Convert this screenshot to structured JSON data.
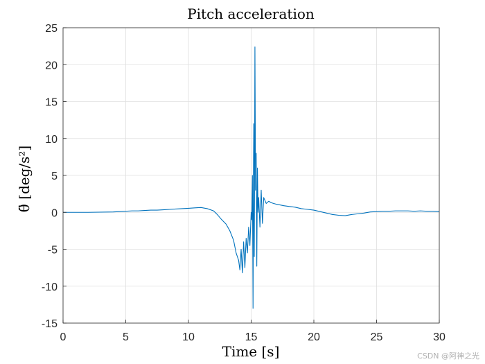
{
  "chart_data": {
    "type": "line",
    "title": "Pitch acceleration",
    "xlabel": "Time [s]",
    "ylabel": "θ̈ [deg/s²]",
    "xlim": [
      0,
      30
    ],
    "ylim": [
      -15,
      25
    ],
    "xticks": [
      "0",
      "5",
      "10",
      "15",
      "20",
      "25",
      "30"
    ],
    "yticks": [
      "25",
      "20",
      "15",
      "10",
      "5",
      "0",
      "-5",
      "-10",
      "-15"
    ],
    "grid": true,
    "series": [
      {
        "name": "pitch acceleration",
        "color": "#0072BD",
        "x": [
          0,
          2,
          4,
          4.5,
          5,
          5.5,
          6,
          6.5,
          7,
          7.5,
          8,
          8.5,
          9,
          9.5,
          10,
          10.5,
          11,
          11.5,
          12,
          12.3,
          12.6,
          13,
          13.3,
          13.6,
          13.8,
          14,
          14.1,
          14.2,
          14.3,
          14.4,
          14.5,
          14.6,
          14.7,
          14.8,
          14.9,
          15,
          15.05,
          15.1,
          15.15,
          15.2,
          15.25,
          15.3,
          15.35,
          15.4,
          15.45,
          15.5,
          15.55,
          15.6,
          15.7,
          15.8,
          15.9,
          16,
          16.2,
          16.4,
          16.6,
          16.8,
          17,
          17.3,
          17.6,
          18,
          18.5,
          19,
          19.5,
          20,
          20.5,
          21,
          21.5,
          22,
          22.5,
          23,
          23.5,
          24,
          24.5,
          25,
          25.5,
          26,
          26.5,
          27,
          27.5,
          28,
          28.5,
          29,
          29.5,
          30
        ],
        "y": [
          0,
          0,
          0.05,
          0.1,
          0.15,
          0.2,
          0.2,
          0.25,
          0.3,
          0.3,
          0.35,
          0.4,
          0.45,
          0.5,
          0.55,
          0.6,
          0.65,
          0.5,
          0.2,
          -0.3,
          -0.9,
          -1.6,
          -2.5,
          -3.8,
          -5.5,
          -6.5,
          -7.8,
          -5,
          -8.2,
          -4,
          -7.5,
          -3.5,
          -5.5,
          -2,
          -4.5,
          0,
          -1,
          5,
          -13,
          12,
          -6,
          22.4,
          3,
          8,
          -7.3,
          6,
          0,
          2,
          -2,
          3,
          -1.5,
          2,
          1.2,
          1.5,
          1.3,
          1.2,
          1.1,
          1,
          0.9,
          0.8,
          0.7,
          0.5,
          0.4,
          0.3,
          0.1,
          -0.1,
          -0.3,
          -0.4,
          -0.45,
          -0.3,
          -0.2,
          -0.1,
          0.05,
          0.1,
          0.15,
          0.15,
          0.2,
          0.2,
          0.2,
          0.15,
          0.2,
          0.15,
          0.15,
          0.1
        ]
      }
    ]
  },
  "watermark": "CSDN @阿神之光"
}
